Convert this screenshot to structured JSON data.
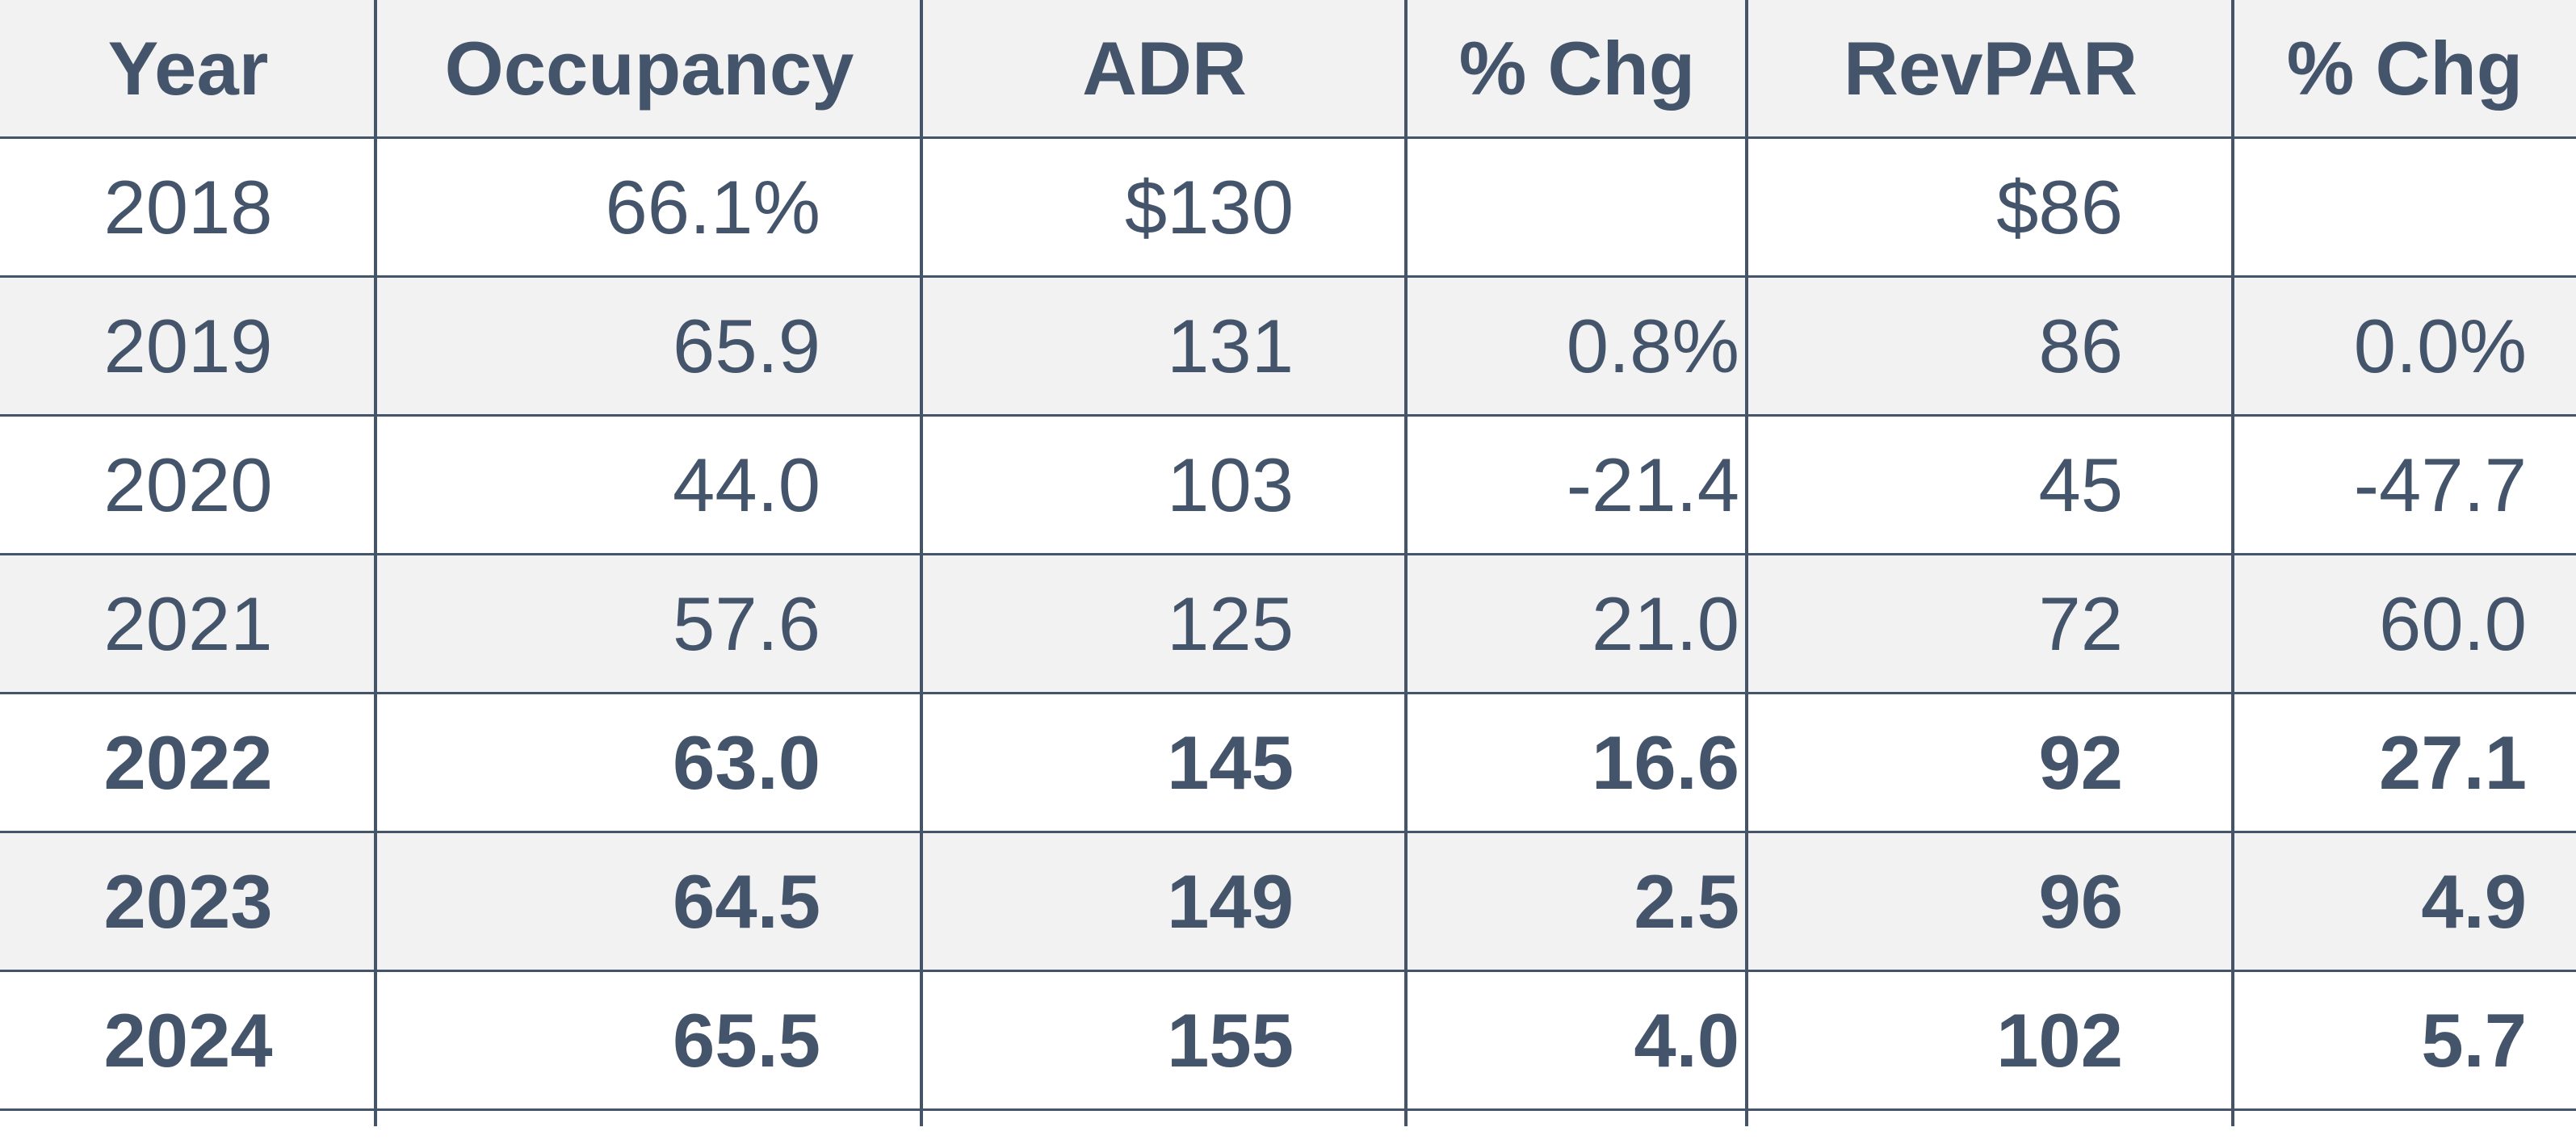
{
  "chart_data": {
    "type": "table",
    "columns": [
      "Year",
      "Occupancy",
      "ADR",
      "% Chg",
      "RevPAR",
      "% Chg"
    ],
    "rows": [
      {
        "year": "2018",
        "occupancy": "66.1%",
        "adr": "$130",
        "adr_chg": "",
        "revpar": "$86",
        "revpar_chg": "",
        "bold": false
      },
      {
        "year": "2019",
        "occupancy": "65.9",
        "adr": "131",
        "adr_chg": "0.8%",
        "revpar": "86",
        "revpar_chg": "0.0%",
        "bold": false
      },
      {
        "year": "2020",
        "occupancy": "44.0",
        "adr": "103",
        "adr_chg": "-21.4",
        "revpar": "45",
        "revpar_chg": "-47.7",
        "bold": false
      },
      {
        "year": "2021",
        "occupancy": "57.6",
        "adr": "125",
        "adr_chg": "21.0",
        "revpar": "72",
        "revpar_chg": "60.0",
        "bold": false
      },
      {
        "year": "2022",
        "occupancy": "63.0",
        "adr": "145",
        "adr_chg": "16.6",
        "revpar": "92",
        "revpar_chg": "27.1",
        "bold": true
      },
      {
        "year": "2023",
        "occupancy": "64.5",
        "adr": "149",
        "adr_chg": "2.5",
        "revpar": "96",
        "revpar_chg": "4.9",
        "bold": true
      },
      {
        "year": "2024",
        "occupancy": "65.5",
        "adr": "155",
        "adr_chg": "4.0",
        "revpar": "102",
        "revpar_chg": "5.7",
        "bold": true
      }
    ]
  },
  "colors": {
    "text": "#44546a",
    "header_bg": "#f2f2f2",
    "shaded_row_bg": "#f2f2f2",
    "rule": "#44546a"
  }
}
